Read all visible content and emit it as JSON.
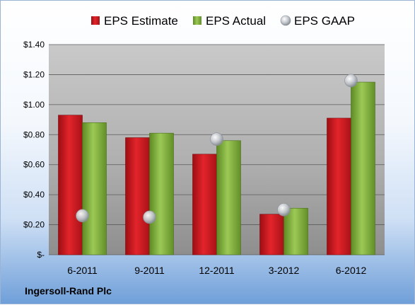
{
  "company": "Ingersoll-Rand Plc",
  "colors": {
    "estimate": "#c8161d",
    "actual": "#7fae3a",
    "gaap": "#b7bcc4"
  },
  "chart_data": {
    "type": "bar",
    "title": "",
    "xlabel": "",
    "ylabel": "",
    "categories": [
      "6-2011",
      "9-2011",
      "12-2011",
      "3-2012",
      "6-2012"
    ],
    "series": [
      {
        "name": "EPS Estimate",
        "kind": "bar",
        "values": [
          0.93,
          0.78,
          0.67,
          0.27,
          0.91
        ]
      },
      {
        "name": "EPS Actual",
        "kind": "bar",
        "values": [
          0.88,
          0.81,
          0.76,
          0.31,
          1.15
        ]
      },
      {
        "name": "EPS GAAP",
        "kind": "marker",
        "values": [
          0.26,
          0.25,
          0.77,
          0.3,
          1.16
        ]
      }
    ],
    "ylim": [
      0,
      1.4
    ],
    "yticks": [
      0,
      0.2,
      0.4,
      0.6,
      0.8,
      1.0,
      1.2,
      1.4
    ],
    "ytick_labels": [
      "$-",
      "$0.20",
      "$0.40",
      "$0.60",
      "$0.80",
      "$1.00",
      "$1.20",
      "$1.40"
    ],
    "grid": true,
    "legend_position": "top"
  }
}
